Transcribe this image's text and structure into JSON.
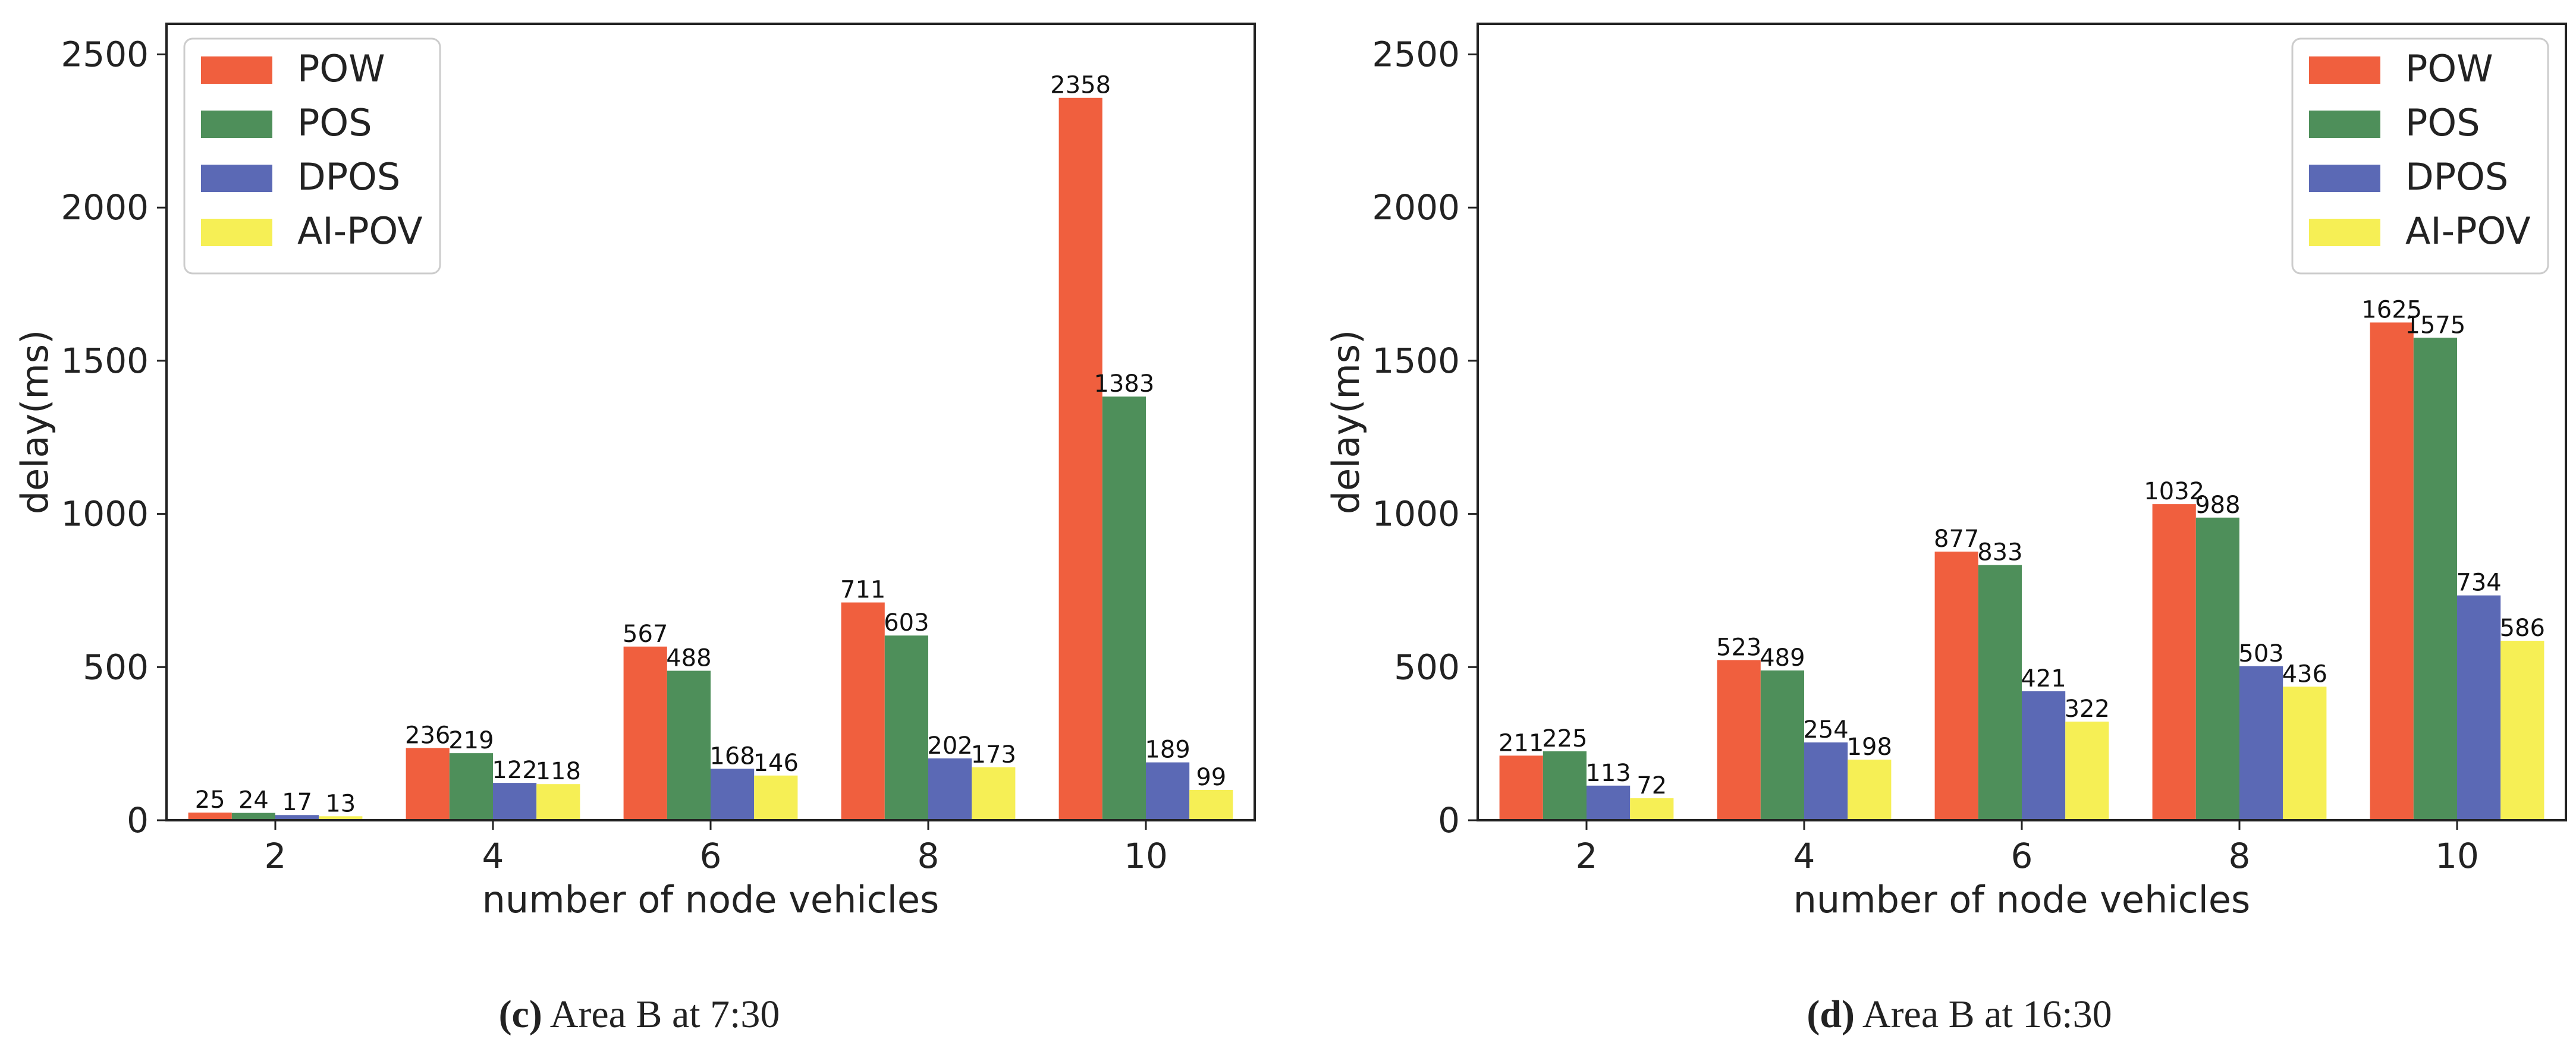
{
  "chart_data": [
    {
      "type": "bar",
      "categories": [
        "2",
        "4",
        "6",
        "8",
        "10"
      ],
      "series": [
        {
          "name": "POW",
          "color": "#f05f3e",
          "values": [
            25,
            236,
            567,
            711,
            2358
          ]
        },
        {
          "name": "POS",
          "color": "#4e8f5a",
          "values": [
            24,
            219,
            488,
            603,
            1383
          ]
        },
        {
          "name": "DPOS",
          "color": "#5b69b5",
          "values": [
            17,
            122,
            168,
            202,
            189
          ]
        },
        {
          "name": "AI-POV",
          "color": "#f6ef55",
          "values": [
            13,
            118,
            146,
            173,
            99
          ]
        }
      ],
      "title": "",
      "xlabel": "number of node vehicles",
      "ylabel": "delay(ms)",
      "ylim": [
        0,
        2600
      ],
      "yticks": [
        0,
        500,
        1000,
        1500,
        2000,
        2500
      ],
      "legend": "top-left",
      "grid": false,
      "caption": {
        "letter": "(c)",
        "text": " Area B at 7:30"
      }
    },
    {
      "type": "bar",
      "categories": [
        "2",
        "4",
        "6",
        "8",
        "10"
      ],
      "series": [
        {
          "name": "POW",
          "color": "#f05f3e",
          "values": [
            211,
            523,
            877,
            1032,
            1625
          ]
        },
        {
          "name": "POS",
          "color": "#4e8f5a",
          "values": [
            225,
            489,
            833,
            988,
            1575
          ]
        },
        {
          "name": "DPOS",
          "color": "#5b69b5",
          "values": [
            113,
            254,
            421,
            503,
            734
          ]
        },
        {
          "name": "AI-POV",
          "color": "#f6ef55",
          "values": [
            72,
            198,
            322,
            436,
            586
          ]
        }
      ],
      "title": "",
      "xlabel": "number of node vehicles",
      "ylabel": "delay(ms)",
      "ylim": [
        0,
        2600
      ],
      "yticks": [
        0,
        500,
        1000,
        1500,
        2000,
        2500
      ],
      "legend": "top-right",
      "grid": false,
      "caption": {
        "letter": "(d)",
        "text": " Area B at 16:30"
      }
    }
  ]
}
